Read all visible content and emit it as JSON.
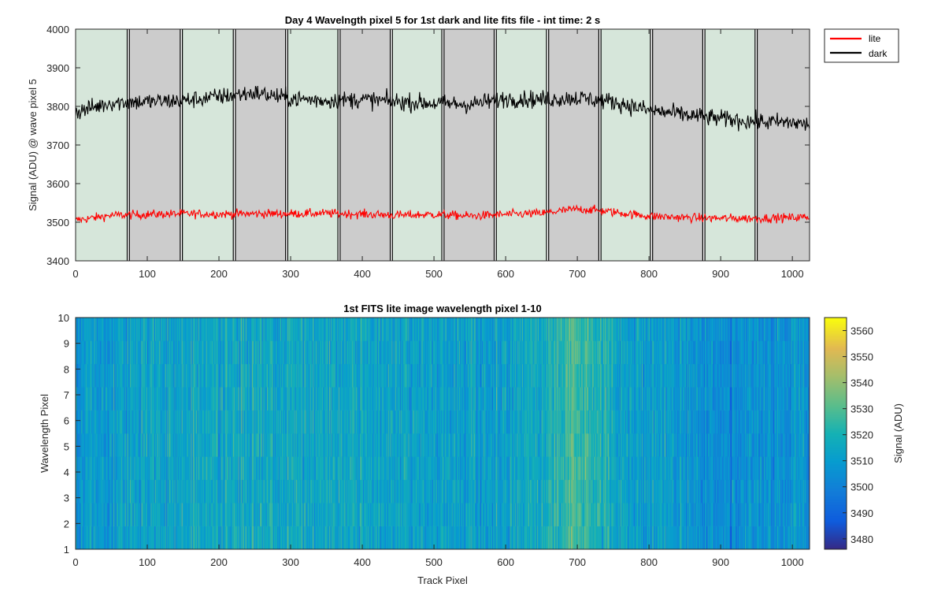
{
  "chart_data": [
    {
      "type": "line",
      "title": "Day 4 Wavelngth pixel 5 for 1st dark and lite fits file - int time: 2 s",
      "xlabel": "",
      "ylabel": "Signal (ADU) @ wave pixel 5",
      "xlim": [
        0,
        1024
      ],
      "ylim": [
        3400,
        4000
      ],
      "xticks": [
        0,
        100,
        200,
        300,
        400,
        500,
        600,
        700,
        800,
        900,
        1000
      ],
      "yticks": [
        3400,
        3500,
        3600,
        3700,
        3800,
        3900,
        4000
      ],
      "grid": false,
      "legend_position": "outside-top-right",
      "legend": [
        "lite",
        "dark"
      ],
      "background_bands": {
        "colors": {
          "lite": "#d6e6da",
          "dark": "#cccccc"
        },
        "segments": [
          {
            "kind": "lite",
            "start": 0,
            "end": 72
          },
          {
            "kind": "dark",
            "start": 75,
            "end": 146
          },
          {
            "kind": "lite",
            "start": 149,
            "end": 220
          },
          {
            "kind": "dark",
            "start": 223,
            "end": 293
          },
          {
            "kind": "lite",
            "start": 296,
            "end": 366
          },
          {
            "kind": "dark",
            "start": 369,
            "end": 439
          },
          {
            "kind": "lite",
            "start": 442,
            "end": 511
          },
          {
            "kind": "dark",
            "start": 514,
            "end": 584
          },
          {
            "kind": "lite",
            "start": 587,
            "end": 657
          },
          {
            "kind": "dark",
            "start": 660,
            "end": 730
          },
          {
            "kind": "lite",
            "start": 733,
            "end": 802
          },
          {
            "kind": "dark",
            "start": 805,
            "end": 875
          },
          {
            "kind": "lite",
            "start": 878,
            "end": 948
          },
          {
            "kind": "dark",
            "start": 951,
            "end": 1024
          }
        ]
      },
      "series": [
        {
          "name": "lite",
          "color": "#ff0000",
          "noise": 8,
          "x": [
            0,
            50,
            100,
            150,
            200,
            250,
            300,
            350,
            400,
            450,
            500,
            550,
            600,
            650,
            680,
            700,
            720,
            750,
            800,
            850,
            900,
            950,
            1000,
            1024
          ],
          "y": [
            3505,
            3518,
            3520,
            3522,
            3521,
            3522,
            3522,
            3523,
            3521,
            3518,
            3520,
            3516,
            3520,
            3523,
            3530,
            3534,
            3532,
            3526,
            3516,
            3512,
            3510,
            3510,
            3512,
            3514
          ]
        },
        {
          "name": "dark",
          "color": "#000000",
          "noise": 16,
          "x": [
            0,
            50,
            100,
            150,
            200,
            250,
            300,
            350,
            400,
            450,
            500,
            550,
            600,
            650,
            700,
            750,
            800,
            850,
            900,
            950,
            1000,
            1024
          ],
          "y": [
            3785,
            3810,
            3812,
            3815,
            3825,
            3835,
            3820,
            3815,
            3818,
            3812,
            3808,
            3805,
            3820,
            3818,
            3822,
            3812,
            3790,
            3778,
            3768,
            3760,
            3758,
            3752
          ]
        }
      ]
    },
    {
      "type": "heatmap",
      "title": "1st FITS lite image wavelength pixel 1-10",
      "xlabel": "Track Pixel",
      "ylabel": "Wavelength Pixel",
      "xlim": [
        0,
        1024
      ],
      "ylim": [
        1,
        10
      ],
      "xticks": [
        0,
        100,
        200,
        300,
        400,
        500,
        600,
        700,
        800,
        900,
        1000
      ],
      "yticks": [
        1,
        2,
        3,
        4,
        5,
        6,
        7,
        8,
        9,
        10
      ],
      "rows": 10,
      "columns": 1024,
      "colorbar": {
        "label": "Signal (ADU)",
        "range": [
          3476,
          3565
        ],
        "ticks": [
          3480,
          3490,
          3500,
          3510,
          3520,
          3530,
          3540,
          3550,
          3560
        ],
        "colormap": "parula"
      },
      "mean_signal_profile": {
        "x": [
          0,
          100,
          200,
          300,
          400,
          500,
          600,
          650,
          680,
          700,
          720,
          750,
          800,
          900,
          1000,
          1024
        ],
        "value": [
          3510,
          3514,
          3516,
          3516,
          3514,
          3512,
          3512,
          3518,
          3526,
          3528,
          3524,
          3516,
          3510,
          3506,
          3506,
          3508
        ]
      }
    }
  ]
}
